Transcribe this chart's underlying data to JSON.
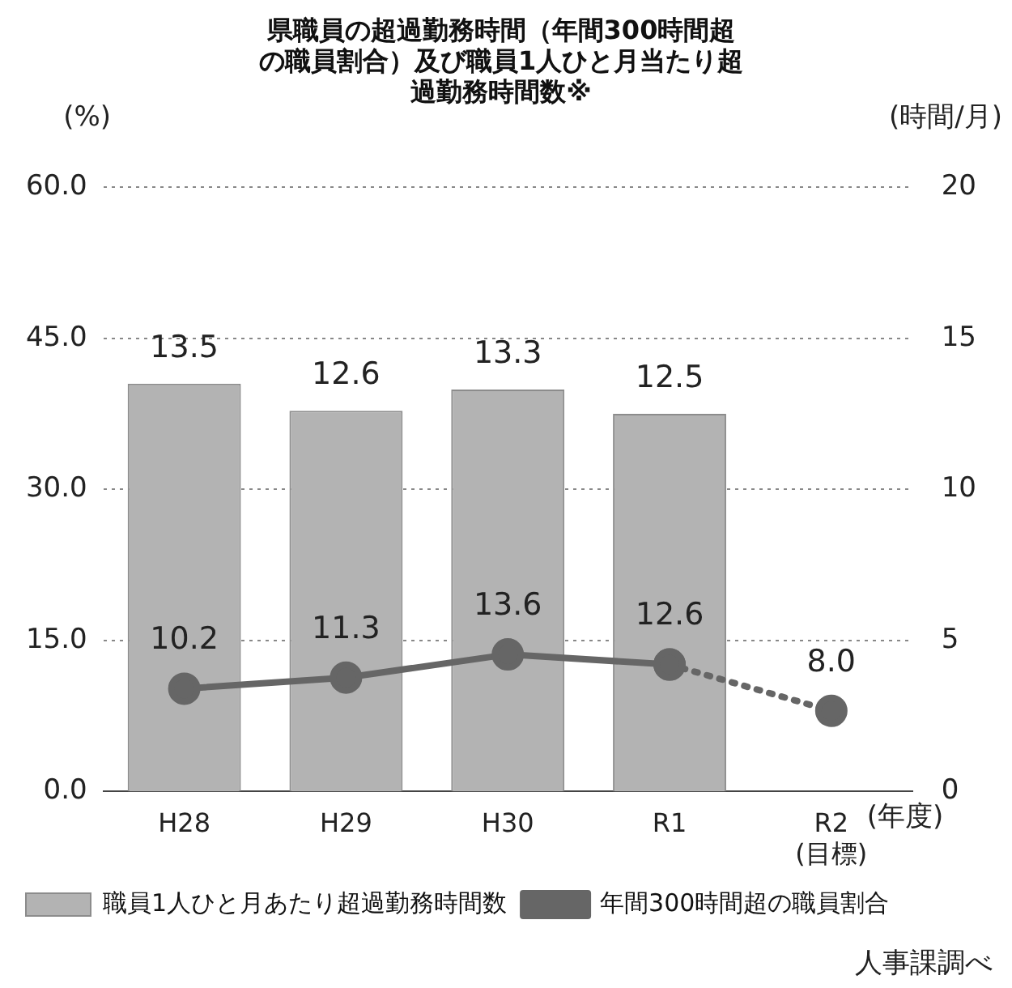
{
  "chart_data": {
    "type": "bar",
    "title": "県職員の超過勤務時間（年間300時間超の職員割合）及び職員1人ひと月当たり超過勤務時間数※",
    "ylabel": "(%)",
    "y2label": "(時間/月)",
    "xlabel": "(年度)",
    "categories": [
      "H28",
      "H29",
      "H30",
      "R1",
      "R2\n(目標)"
    ],
    "series": [
      {
        "name": "職員1人ひと月あたり超過勤務時間数",
        "axis": "y2",
        "color": "#b3b3b3",
        "values": [
          13.5,
          12.6,
          13.3,
          12.5,
          null
        ],
        "value_labels": [
          "13.5",
          "12.6",
          "13.3",
          "12.5",
          null
        ]
      },
      {
        "name": "年間300時間超の職員割合",
        "type": "line",
        "axis": "y",
        "color": "#666666",
        "line_style": "solid",
        "values": [
          10.2,
          11.3,
          13.6,
          12.6,
          null
        ],
        "value_labels": [
          "10.2",
          "11.3",
          "13.6",
          "12.6",
          null
        ]
      },
      {
        "type": "line",
        "axis": "y",
        "color": "#666666",
        "line_style": "dotted",
        "values": [
          null,
          null,
          null,
          12.6,
          8.0
        ],
        "value_labels": [
          null,
          null,
          null,
          null,
          "8.0"
        ]
      }
    ],
    "ylim": [
      0,
      60
    ],
    "yticks": [
      {
        "value": 0,
        "label": "0.0"
      },
      {
        "value": 15,
        "label": "15.0"
      },
      {
        "value": 30,
        "label": "30.0"
      },
      {
        "value": 45,
        "label": "45.0"
      },
      {
        "value": 60,
        "label": "60.0"
      }
    ],
    "y2lim": [
      0,
      20
    ],
    "y2ticks": [
      0,
      5,
      10,
      15,
      20
    ],
    "grid": "y",
    "legend": "bottom",
    "marker": "circle",
    "annotations": [
      "人事課調べ"
    ]
  }
}
